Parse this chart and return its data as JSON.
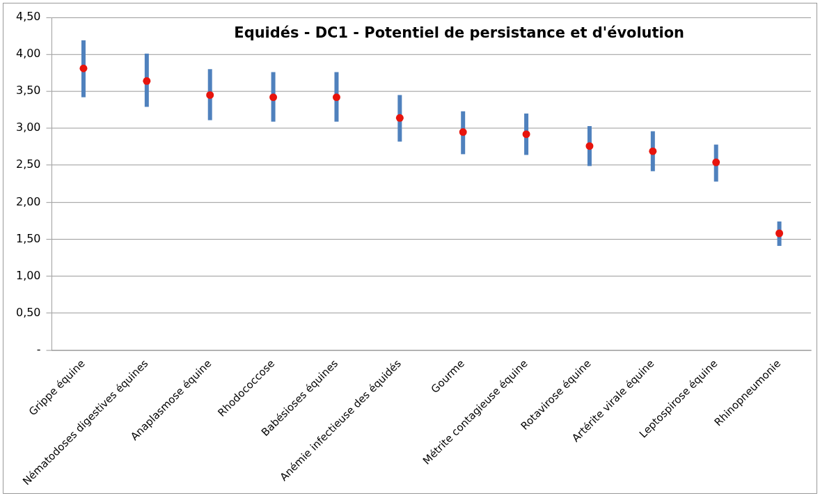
{
  "chart_data": {
    "type": "scatter",
    "title": "Equidés - DC1 - Potentiel de persistance et d'évolution",
    "categories": [
      "Grippe équine",
      "Nématodoses digestives équines",
      "Anaplasmose équine",
      "Rhodococcose",
      "Babésioses équines",
      "Anémie infectieuse des équidés",
      "Gourme",
      "Métrite contagieuse équine",
      "Rotavirose équine",
      "Artérite virale équine",
      "Leptospirose équine",
      "Rhinopneumonie"
    ],
    "series": [
      {
        "color": "#e8140c",
        "values": [
          3.81,
          3.64,
          3.45,
          3.42,
          3.42,
          3.14,
          2.95,
          2.92,
          2.76,
          2.69,
          2.54,
          1.58
        ],
        "errors": [
          [
            3.42,
            4.19
          ],
          [
            3.29,
            4.01
          ],
          [
            3.11,
            3.8
          ],
          [
            3.09,
            3.76
          ],
          [
            3.09,
            3.76
          ],
          [
            2.82,
            3.45
          ],
          [
            2.65,
            3.23
          ],
          [
            2.64,
            3.2
          ],
          [
            2.49,
            3.03
          ],
          [
            2.42,
            2.96
          ],
          [
            2.28,
            2.78
          ],
          [
            1.41,
            1.74
          ]
        ]
      }
    ],
    "ylim": [
      0,
      4.5
    ],
    "yticks": [
      {
        "value": 0,
        "label": "-"
      },
      {
        "value": 0.5,
        "label": "0,50"
      },
      {
        "value": 1,
        "label": "1,00"
      },
      {
        "value": 1.5,
        "label": "1,50"
      },
      {
        "value": 2,
        "label": "2,00"
      },
      {
        "value": 2.5,
        "label": "2,50"
      },
      {
        "value": 3,
        "label": "3,00"
      },
      {
        "value": 3.5,
        "label": "3,50"
      },
      {
        "value": 4,
        "label": "4,00"
      },
      {
        "value": 4.5,
        "label": "4,50"
      }
    ],
    "grid": "y",
    "legend": false,
    "marker": "circle"
  }
}
